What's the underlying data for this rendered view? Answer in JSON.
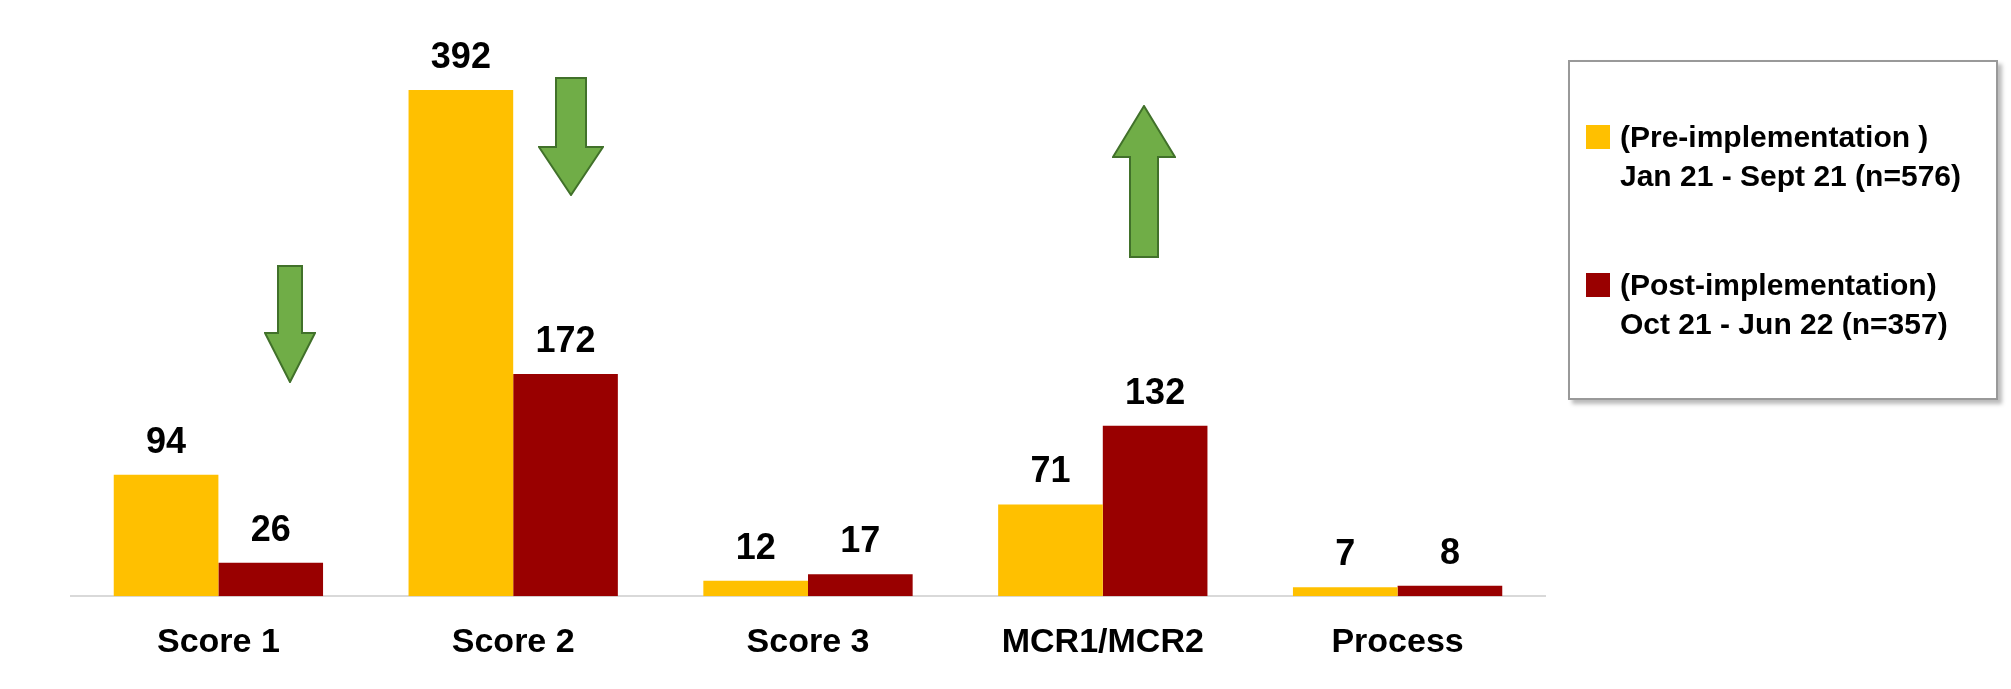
{
  "chart_data": {
    "type": "bar",
    "categories": [
      "Score 1",
      "Score 2",
      "Score 3",
      "MCR1/MCR2",
      "Process"
    ],
    "series": [
      {
        "name": "(Pre-implementation ) Jan 21 - Sept 21 (n=576)",
        "color": "#ffc000",
        "values": [
          94,
          392,
          12,
          71,
          7
        ]
      },
      {
        "name": "(Post-implementation) Oct 21 - Jun 22 (n=357)",
        "color": "#990000",
        "values": [
          26,
          172,
          17,
          132,
          8
        ]
      }
    ],
    "data_labels": true,
    "grid": false,
    "legend": "right",
    "tick_labels": "x"
  }
}
